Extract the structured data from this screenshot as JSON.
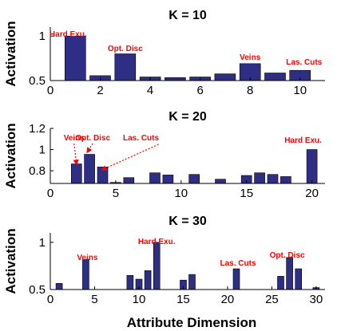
{
  "chart_data": [
    {
      "type": "bar",
      "title": "K = 10",
      "ylabel": "Activation",
      "xlabel": "",
      "xlim": [
        0,
        11
      ],
      "ylim": [
        0.5,
        1.1
      ],
      "xticks": [
        0,
        2,
        4,
        6,
        8,
        10
      ],
      "yticks": [
        0.5,
        1
      ],
      "x": [
        1,
        2,
        3,
        4,
        5,
        6,
        7,
        8,
        9,
        10
      ],
      "values": [
        1.0,
        0.555,
        0.8,
        0.54,
        0.533,
        0.54,
        0.575,
        0.69,
        0.585,
        0.615
      ],
      "annotations": [
        {
          "text": "Hard Exu.",
          "x": 1
        },
        {
          "text": "Opt. Disc",
          "x": 3
        },
        {
          "text": "Veins",
          "x": 8
        },
        {
          "text": "Las. Cuts",
          "x": 10
        }
      ]
    },
    {
      "type": "bar",
      "title": "K = 20",
      "ylabel": "Activation",
      "xlabel": "",
      "xlim": [
        0,
        21
      ],
      "ylim": [
        0.68,
        1.2
      ],
      "xticks": [
        0,
        5,
        10,
        15,
        20
      ],
      "yticks": [
        0.8,
        1,
        1.2
      ],
      "x": [
        1,
        2,
        3,
        4,
        5,
        6,
        7,
        8,
        9,
        10,
        11,
        12,
        13,
        14,
        15,
        16,
        17,
        18,
        19,
        20
      ],
      "values": [
        0.68,
        0.865,
        0.955,
        0.835,
        0.69,
        0.735,
        0.68,
        0.78,
        0.76,
        0.68,
        0.765,
        0.68,
        0.72,
        0.68,
        0.755,
        0.78,
        0.765,
        0.745,
        0.68,
        1.0
      ],
      "annotations": [
        {
          "text": "Veins",
          "x": 2
        },
        {
          "text": "Opt. Disc",
          "x": 3
        },
        {
          "text": "Las. Cuts",
          "x": 4
        },
        {
          "text": "Hard Exu.",
          "x": 20
        }
      ]
    },
    {
      "type": "bar",
      "title": "K = 30",
      "ylabel": "Activation",
      "xlabel": "Attribute Dimension",
      "xlim": [
        0,
        31
      ],
      "ylim": [
        0.5,
        1.1
      ],
      "xticks": [
        0,
        5,
        10,
        15,
        20,
        25,
        30
      ],
      "yticks": [
        0.5,
        1
      ],
      "x": [
        1,
        2,
        3,
        4,
        5,
        6,
        7,
        8,
        9,
        10,
        11,
        12,
        13,
        14,
        15,
        16,
        17,
        18,
        19,
        20,
        21,
        22,
        23,
        24,
        25,
        26,
        27,
        28,
        29,
        30
      ],
      "values": [
        0.565,
        0.5,
        0.5,
        0.82,
        0.5,
        0.5,
        0.5,
        0.5,
        0.65,
        0.61,
        0.7,
        1.0,
        0.5,
        0.5,
        0.6,
        0.66,
        0.5,
        0.5,
        0.5,
        0.5,
        0.72,
        0.5,
        0.5,
        0.5,
        0.5,
        0.64,
        0.84,
        0.72,
        0.5,
        0.52
      ],
      "annotations": [
        {
          "text": "Veins",
          "x": 4
        },
        {
          "text": "Hard Exu.",
          "x": 12
        },
        {
          "text": "Las. Cuts",
          "x": 21
        },
        {
          "text": "Opt. Disc",
          "x": 27
        }
      ]
    }
  ],
  "colors": {
    "bar": "#2e2e85",
    "annotation": "#ff0000",
    "axis": "#000000"
  }
}
